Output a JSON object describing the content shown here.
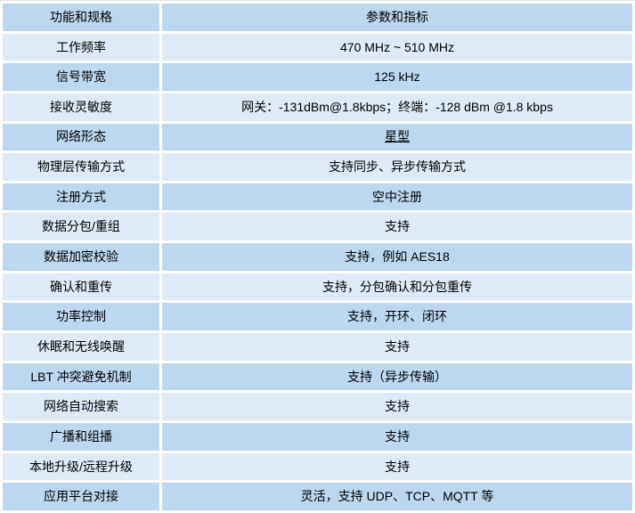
{
  "colors": {
    "row_dark": "#BDD7EE",
    "row_light": "#DEEBF7",
    "text": "#000000",
    "bg": "#FFFFFF",
    "hairline": "#D9E5F2"
  },
  "table": {
    "columns": [
      "功能和规格",
      "参数和指标"
    ],
    "rows": [
      {
        "label": "工作频率",
        "value": "470 MHz ~ 510 MHz"
      },
      {
        "label": "信号带宽",
        "value": "125 kHz"
      },
      {
        "label": "接收灵敏度",
        "value": "网关：-131dBm@1.8kbps；终端：-128 dBm @1.8 kbps"
      },
      {
        "label": "网络形态",
        "value": "星型",
        "underline": true
      },
      {
        "label": "物理层传输方式",
        "value": "支持同步、异步传输方式"
      },
      {
        "label": "注册方式",
        "value": "空中注册"
      },
      {
        "label": "数据分包/重组",
        "value": "支持"
      },
      {
        "label": "数据加密校验",
        "value": "支持，例如 AES18"
      },
      {
        "label": "确认和重传",
        "value": "支持，分包确认和分包重传"
      },
      {
        "label": "功率控制",
        "value": "支持，开环、闭环"
      },
      {
        "label": "休眠和无线唤醒",
        "value": "支持"
      },
      {
        "label": "LBT 冲突避免机制",
        "value": "支持（异步传输）"
      },
      {
        "label": "网络自动搜索",
        "value": "支持"
      },
      {
        "label": "广播和组播",
        "value": "支持"
      },
      {
        "label": "本地升级/远程升级",
        "value": "支持"
      },
      {
        "label": "应用平台对接",
        "value": "灵活，支持 UDP、TCP、MQTT 等"
      }
    ]
  }
}
